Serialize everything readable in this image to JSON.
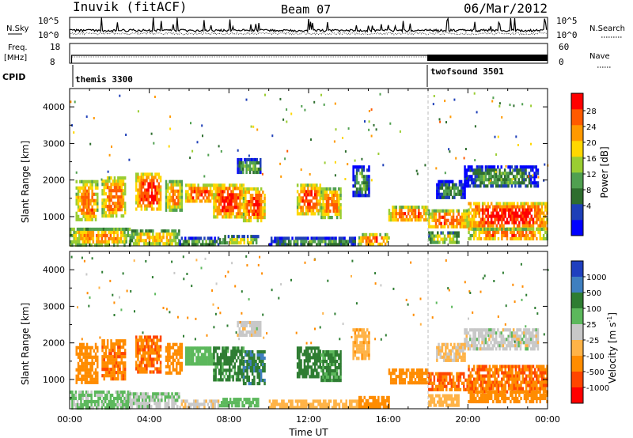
{
  "header": {
    "station": "Inuvik (fitACF)",
    "beam": "Beam 07",
    "date": "06/Mar/2012"
  },
  "nsky_panel": {
    "left_label": "N.Sky",
    "right_label": "N.Search",
    "left_ticks": [
      "10^5",
      "10^0"
    ],
    "right_ticks": [
      "10^5",
      "10^0"
    ]
  },
  "freq_panel": {
    "left_label_1": "Freq.",
    "left_label_2": "[MHz]",
    "right_label": "Nave",
    "left_ticks": [
      "18",
      "8"
    ],
    "right_ticks": [
      "60",
      "0"
    ]
  },
  "cpid_panel": {
    "label": "CPID",
    "programs": [
      {
        "name": "themis 3300",
        "start_hour": 0
      },
      {
        "name": "twofsound 3501",
        "start_hour": 18
      }
    ]
  },
  "power_panel": {
    "ylabel": "Slant Range [km]",
    "yticks": [
      "4000",
      "3000",
      "2000",
      "1000"
    ],
    "colorbar_label": "Power [dB]",
    "colorbar_ticks": [
      "28",
      "24",
      "20",
      "16",
      "12",
      "8",
      "4"
    ],
    "colors": [
      "#0000ff",
      "#1e3fb8",
      "#2e6e2e",
      "#50a050",
      "#9acd32",
      "#ffd700",
      "#ff9900",
      "#ff5a00",
      "#ff0000"
    ]
  },
  "velocity_panel": {
    "ylabel": "Slant Range [km]",
    "yticks": [
      "4000",
      "3000",
      "2000",
      "1000"
    ],
    "colorbar_label": "Velocity [m s",
    "colorbar_label_sup": "-1",
    "colorbar_label_end": "]",
    "colorbar_ticks": [
      "1000",
      "500",
      "100",
      "25",
      "-25",
      "-100",
      "-500",
      "-1000"
    ],
    "colors": [
      "#1f3fbf",
      "#3f7fbf",
      "#2e7d32",
      "#5cb85c",
      "#c8c8c8",
      "#ffb347",
      "#ff8c00",
      "#ff4500",
      "#ff0000"
    ]
  },
  "xaxis": {
    "label": "Time UT",
    "ticks": [
      "00:00",
      "04:00",
      "08:00",
      "12:00",
      "16:00",
      "20:00",
      "00:00"
    ]
  },
  "chart_data": {
    "type": "heatmap",
    "title": "Inuvik (fitACF) Beam 07 06/Mar/2012",
    "xlabel": "Time UT",
    "ylabel": "Slant Range [km]",
    "xlim_hours": [
      0,
      24
    ],
    "ylim_km": [
      200,
      4500
    ],
    "power_scale_db": [
      0,
      30
    ],
    "velocity_scale_ms": [
      -1000,
      1000
    ],
    "echo_regions": [
      {
        "t0": 0.0,
        "t1": 3.0,
        "r0": 250,
        "r1": 700,
        "power": 22,
        "velocity": 40
      },
      {
        "t0": 3.0,
        "t1": 5.5,
        "r0": 250,
        "r1": 650,
        "power": 20,
        "velocity": 20
      },
      {
        "t0": 5.5,
        "t1": 7.5,
        "r0": 250,
        "r1": 450,
        "power": 14,
        "velocity": -10
      },
      {
        "t0": 7.5,
        "t1": 9.5,
        "r0": 250,
        "r1": 500,
        "power": 17,
        "velocity": 60
      },
      {
        "t0": 10.0,
        "t1": 14.5,
        "r0": 250,
        "r1": 450,
        "power": 13,
        "velocity": -60
      },
      {
        "t0": 14.5,
        "t1": 16.0,
        "r0": 250,
        "r1": 550,
        "power": 25,
        "velocity": -200
      },
      {
        "t0": 0.3,
        "t1": 1.4,
        "r0": 900,
        "r1": 2000,
        "power": 24,
        "velocity": -300
      },
      {
        "t0": 1.6,
        "t1": 2.8,
        "r0": 1000,
        "r1": 2100,
        "power": 24,
        "velocity": -400
      },
      {
        "t0": 3.3,
        "t1": 4.6,
        "r0": 1200,
        "r1": 2200,
        "power": 27,
        "velocity": -450
      },
      {
        "t0": 4.8,
        "t1": 5.6,
        "r0": 1200,
        "r1": 2000,
        "power": 23,
        "velocity": -350
      },
      {
        "t0": 5.8,
        "t1": 7.2,
        "r0": 1400,
        "r1": 1900,
        "power": 25,
        "velocity": 60
      },
      {
        "t0": 7.2,
        "t1": 8.7,
        "r0": 1000,
        "r1": 1900,
        "power": 27,
        "velocity": 150
      },
      {
        "t0": 8.7,
        "t1": 9.8,
        "r0": 900,
        "r1": 1800,
        "power": 26,
        "velocity": 450
      },
      {
        "t0": 8.4,
        "t1": 9.6,
        "r0": 2200,
        "r1": 2600,
        "power": 13,
        "velocity": 0
      },
      {
        "t0": 11.4,
        "t1": 12.6,
        "r0": 1100,
        "r1": 1900,
        "power": 26,
        "velocity": 200
      },
      {
        "t0": 12.6,
        "t1": 13.6,
        "r0": 1000,
        "r1": 1800,
        "power": 24,
        "velocity": 120
      },
      {
        "t0": 14.2,
        "t1": 15.0,
        "r0": 1600,
        "r1": 2400,
        "power": 12,
        "velocity": -80
      },
      {
        "t0": 16.0,
        "t1": 18.0,
        "r0": 900,
        "r1": 1300,
        "power": 25,
        "velocity": -300
      },
      {
        "t0": 18.0,
        "t1": 20.0,
        "r0": 700,
        "r1": 1200,
        "power": 25,
        "velocity": -500
      },
      {
        "t0": 20.0,
        "t1": 24.0,
        "r0": 700,
        "r1": 1400,
        "power": 28,
        "velocity": -450
      },
      {
        "t0": 20.0,
        "t1": 24.0,
        "r0": 400,
        "r1": 700,
        "power": 24,
        "velocity": -300
      },
      {
        "t0": 18.0,
        "t1": 19.5,
        "r0": 300,
        "r1": 600,
        "power": 18,
        "velocity": -60
      },
      {
        "t0": 19.8,
        "t1": 23.5,
        "r0": 1800,
        "r1": 2400,
        "power": 11,
        "velocity": 0
      },
      {
        "t0": 18.4,
        "t1": 19.8,
        "r0": 1500,
        "r1": 2000,
        "power": 11,
        "velocity": -40
      }
    ]
  }
}
